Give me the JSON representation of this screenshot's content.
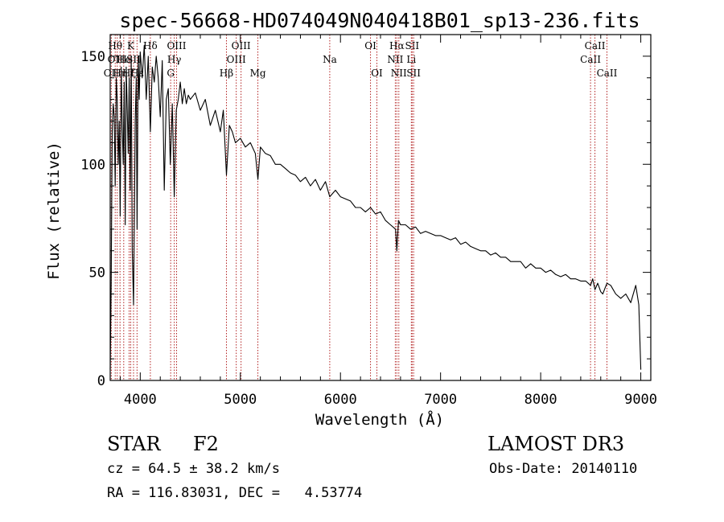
{
  "chart_data": {
    "type": "line",
    "title": "spec-56668-HD074049N040418B01_sp13-236.fits",
    "xlabel": "Wavelength (Å)",
    "ylabel": "Flux (relative)",
    "xlim": [
      3700,
      9100
    ],
    "ylim": [
      0,
      160
    ],
    "xticks": [
      4000,
      5000,
      6000,
      7000,
      8000,
      9000
    ],
    "xtick_labels": [
      "4000",
      "5000",
      "6000",
      "7000",
      "8000",
      "9000"
    ],
    "yticks": [
      0,
      50,
      100,
      150
    ],
    "ytick_labels": [
      "0",
      "50",
      "100",
      "150"
    ],
    "grid": false,
    "series": [
      {
        "name": "Flux",
        "x": [
          3700,
          3710,
          3720,
          3730,
          3740,
          3750,
          3760,
          3770,
          3780,
          3790,
          3800,
          3810,
          3820,
          3830,
          3840,
          3850,
          3860,
          3870,
          3880,
          3890,
          3900,
          3910,
          3920,
          3933,
          3950,
          3960,
          3968,
          3980,
          3990,
          4000,
          4020,
          4040,
          4060,
          4080,
          4101,
          4120,
          4140,
          4160,
          4180,
          4200,
          4220,
          4240,
          4260,
          4280,
          4300,
          4320,
          4340,
          4360,
          4380,
          4400,
          4420,
          4440,
          4460,
          4480,
          4500,
          4550,
          4600,
          4650,
          4700,
          4750,
          4800,
          4830,
          4861,
          4890,
          4920,
          4950,
          5000,
          5050,
          5100,
          5150,
          5175,
          5200,
          5250,
          5300,
          5350,
          5400,
          5450,
          5500,
          5550,
          5600,
          5650,
          5700,
          5750,
          5800,
          5850,
          5893,
          5950,
          6000,
          6050,
          6100,
          6150,
          6200,
          6250,
          6300,
          6350,
          6400,
          6450,
          6500,
          6550,
          6563,
          6580,
          6600,
          6650,
          6700,
          6750,
          6800,
          6850,
          6900,
          6950,
          7000,
          7050,
          7100,
          7150,
          7200,
          7250,
          7300,
          7350,
          7400,
          7450,
          7500,
          7550,
          7600,
          7650,
          7700,
          7750,
          7800,
          7850,
          7900,
          7950,
          8000,
          8050,
          8100,
          8150,
          8200,
          8250,
          8300,
          8350,
          8400,
          8450,
          8498,
          8520,
          8542,
          8570,
          8600,
          8620,
          8662,
          8700,
          8750,
          8800,
          8850,
          8900,
          8950,
          8980,
          9000
        ],
        "values": [
          5,
          45,
          115,
          128,
          122,
          90,
          140,
          130,
          100,
          120,
          76,
          145,
          118,
          100,
          138,
          72,
          145,
          125,
          105,
          140,
          88,
          150,
          60,
          35,
          120,
          140,
          70,
          150,
          130,
          152,
          140,
          155,
          130,
          150,
          115,
          145,
          138,
          150,
          140,
          122,
          148,
          88,
          130,
          135,
          100,
          128,
          85,
          125,
          130,
          138,
          128,
          135,
          128,
          132,
          130,
          133,
          125,
          130,
          118,
          125,
          115,
          125,
          95,
          118,
          115,
          110,
          112,
          108,
          110,
          105,
          93,
          108,
          105,
          104,
          100,
          100,
          98,
          96,
          95,
          92,
          94,
          90,
          93,
          88,
          92,
          85,
          88,
          85,
          84,
          83,
          80,
          80,
          78,
          80,
          77,
          78,
          74,
          72,
          70,
          60,
          74,
          72,
          72,
          70,
          71,
          68,
          69,
          68,
          67,
          67,
          66,
          65,
          66,
          63,
          64,
          62,
          61,
          60,
          60,
          58,
          59,
          57,
          57,
          55,
          55,
          55,
          52,
          54,
          52,
          52,
          50,
          51,
          49,
          48,
          49,
          47,
          47,
          46,
          46,
          44,
          47,
          42,
          45,
          41,
          40,
          45,
          44,
          40,
          38,
          40,
          36,
          44,
          35,
          5
        ]
      }
    ],
    "line_markers": [
      {
        "wavelength": 3711,
        "label": "OII",
        "row": 3
      },
      {
        "wavelength": 3750,
        "label": "Hθ",
        "row": 1
      },
      {
        "wavelength": 3770,
        "label": "OIII",
        "row": 2
      },
      {
        "wavelength": 3798,
        "label": "Hη",
        "row": 3
      },
      {
        "wavelength": 3835,
        "label": "He",
        "row": 2
      },
      {
        "wavelength": 3889,
        "label": "Hζ",
        "row": 3
      },
      {
        "wavelength": 3905,
        "label": "K",
        "row": 1
      },
      {
        "wavelength": 3933,
        "label": "SII",
        "row": 2
      },
      {
        "wavelength": 3968,
        "label": "Hε",
        "row": 3
      },
      {
        "wavelength": 4101,
        "label": "Hδ",
        "row": 1
      },
      {
        "wavelength": 4304,
        "label": "G",
        "row": 3
      },
      {
        "wavelength": 4340,
        "label": "Hγ",
        "row": 2
      },
      {
        "wavelength": 4363,
        "label": "OIII",
        "row": 1
      },
      {
        "wavelength": 4861,
        "label": "Hβ",
        "row": 3
      },
      {
        "wavelength": 4959,
        "label": "OIII",
        "row": 2
      },
      {
        "wavelength": 5007,
        "label": "OIII",
        "row": 1
      },
      {
        "wavelength": 5175,
        "label": "Mg",
        "row": 3
      },
      {
        "wavelength": 5893,
        "label": "Na",
        "row": 2
      },
      {
        "wavelength": 6300,
        "label": "OI",
        "row": 1
      },
      {
        "wavelength": 6364,
        "label": "OI",
        "row": 3
      },
      {
        "wavelength": 6548,
        "label": "NII",
        "row": 2
      },
      {
        "wavelength": 6563,
        "label": "Hα",
        "row": 1
      },
      {
        "wavelength": 6583,
        "label": "NII",
        "row": 3
      },
      {
        "wavelength": 6708,
        "label": "Li",
        "row": 2
      },
      {
        "wavelength": 6716,
        "label": "SII",
        "row": 1
      },
      {
        "wavelength": 6731,
        "label": "SII",
        "row": 3
      },
      {
        "wavelength": 8498,
        "label": "CaII",
        "row": 2
      },
      {
        "wavelength": 8542,
        "label": "CaII",
        "row": 1
      },
      {
        "wavelength": 8662,
        "label": "CaII",
        "row": 3
      }
    ],
    "colors": {
      "spectrum": "#000000",
      "markers": "#b22222",
      "axes": "#000000"
    }
  },
  "info": {
    "object_class": "STAR",
    "subclass": "F2",
    "survey": "LAMOST DR3",
    "cz": "cz = 64.5 ± 38.2 km/s",
    "obs_date": "Obs-Date: 20140110",
    "radec": "RA = 116.83031, DEC =   4.53774"
  }
}
